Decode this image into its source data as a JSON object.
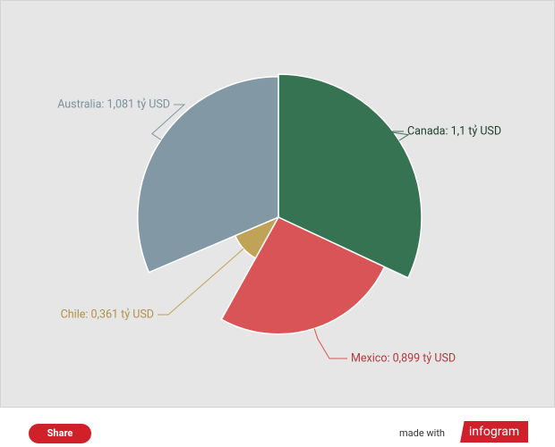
{
  "chart_data": {
    "type": "pie",
    "values": [
      1.1,
      0.899,
      0.361,
      1.081
    ],
    "value_labels": [
      "Canada: 1,1 tỷ USD",
      "Mexico: 0,899 tỷ USD",
      "Chile: 0,361 tỷ USD",
      "Australia: 1,081 tỷ USD"
    ],
    "colors": [
      "#367352",
      "#d95457",
      "#c0a356",
      "#8298a5"
    ],
    "label_colors": [
      "#1f3f2c",
      "#b4383c",
      "#b0914a",
      "#7a919e"
    ]
  },
  "footer": {
    "share": "Share",
    "made_with": "made with",
    "brand": "infogram"
  }
}
